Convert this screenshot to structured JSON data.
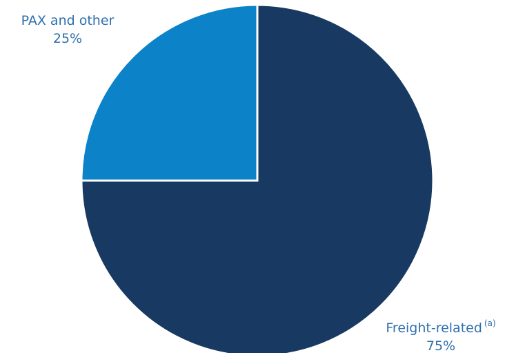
{
  "chart_data": {
    "type": "pie",
    "slices": [
      {
        "label": "Freight-related",
        "note": "(a)",
        "value": 75,
        "value_label": "75%",
        "color": "#183a62"
      },
      {
        "label": "PAX and other",
        "note": "",
        "value": 25,
        "value_label": "25%",
        "color": "#0c82c8"
      }
    ],
    "label_color": "#2f6fae",
    "start_angle_deg": 0,
    "direction": "clockwise"
  }
}
